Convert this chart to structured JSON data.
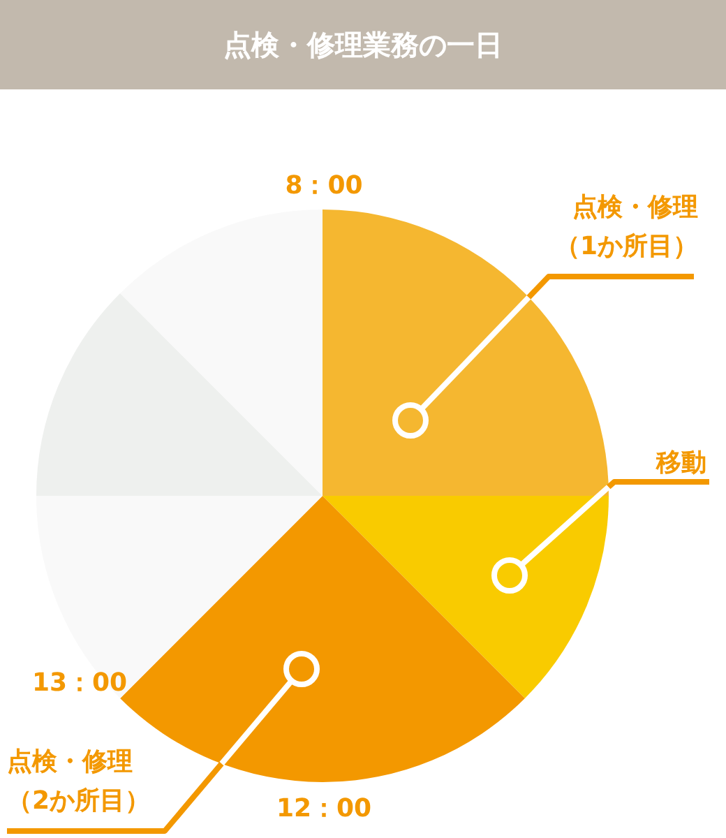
{
  "chart_data": {
    "type": "pie",
    "title": "点検・修理業務の一日",
    "categories": [
      "点検・修理（1か所目）",
      "移動",
      "点検・修理（2か所目）",
      null,
      null,
      null
    ],
    "values": [
      25,
      12.5,
      25,
      12.5,
      12.5,
      12.5
    ],
    "colors": [
      "#f5b730",
      "#f9cb00",
      "#f39800",
      "#f9f9f9",
      "#eef0ee",
      "#f9f9f9"
    ],
    "annotations": [
      "8：00",
      "12：00",
      "13：00"
    ],
    "legend": false
  }
}
